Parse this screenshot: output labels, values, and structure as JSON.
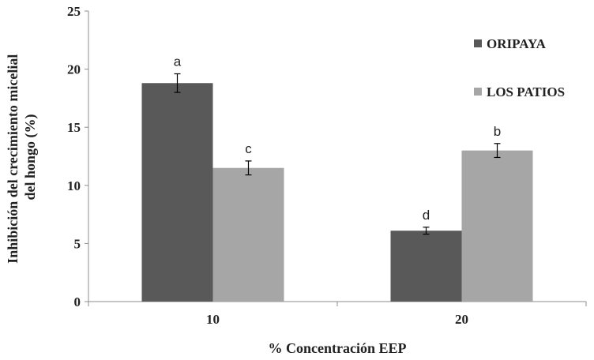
{
  "chart_data": {
    "type": "bar",
    "categories": [
      "10",
      "20"
    ],
    "series": [
      {
        "name": "ORIPAYA",
        "values": [
          18.8,
          6.1
        ],
        "errors": [
          0.8,
          0.3
        ],
        "labels": [
          "a",
          "d"
        ],
        "color": "#595959"
      },
      {
        "name": "LOS PATIOS",
        "values": [
          11.5,
          13.0
        ],
        "errors": [
          0.6,
          0.6
        ],
        "labels": [
          "c",
          "b"
        ],
        "color": "#a6a6a6"
      }
    ],
    "xlabel": "% Concentración EEP",
    "ylabel_lines": [
      "Inhibición  del crecimiento micelial",
      "del hongo (%)"
    ],
    "ylim": [
      0,
      25
    ],
    "yticks": [
      0,
      5,
      10,
      15,
      20,
      25
    ],
    "grid": false,
    "legend_position": "top-right"
  }
}
